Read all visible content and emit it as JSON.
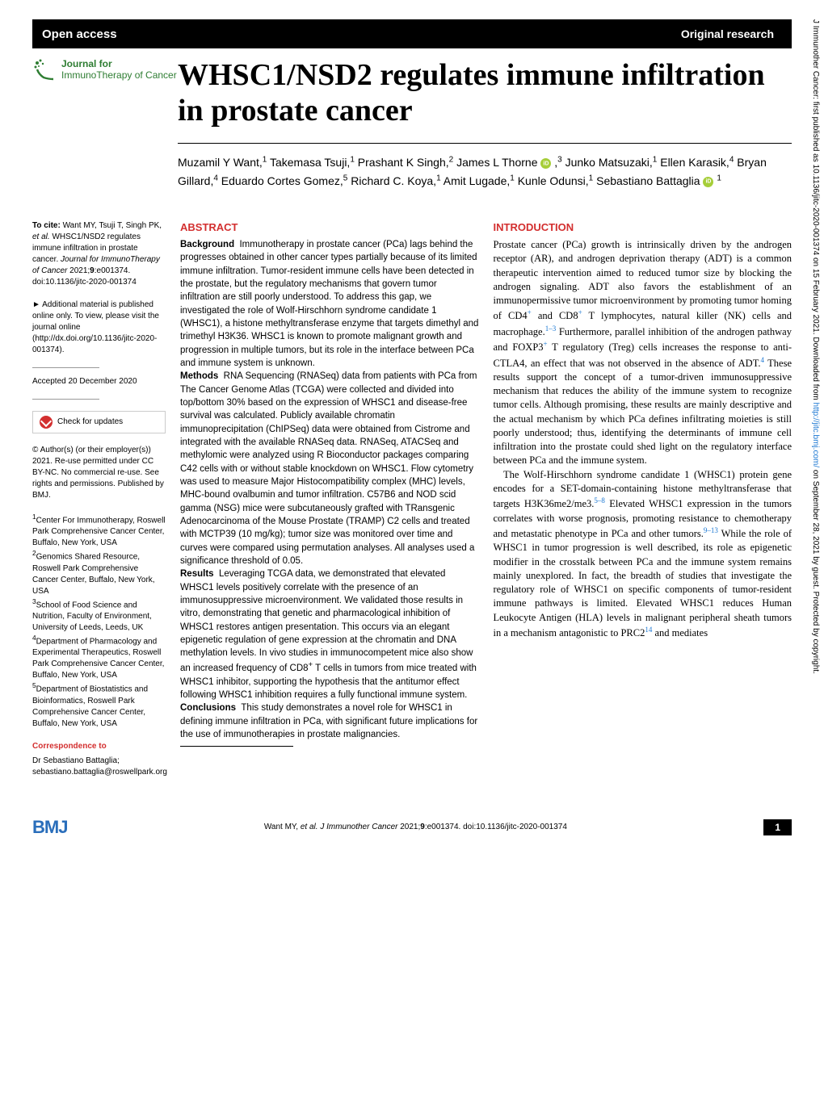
{
  "topbar": {
    "left": "Open access",
    "right": "Original research"
  },
  "journal": {
    "line1": "Journal for",
    "line2": "ImmunoTherapy of Cancer"
  },
  "title": "WHSC1/NSD2 regulates immune infiltration in prostate cancer",
  "authors_html": "Muzamil Y Want,<sup>1</sup> Takemasa Tsuji,<sup>1</sup> Prashant K Singh,<sup>2</sup> James L Thorne <span class='orcid-icon'></span> ,<sup>3</sup> Junko Matsuzaki,<sup>1</sup> Ellen Karasik,<sup>4</sup> Bryan Gillard,<sup>4</sup> Eduardo Cortes Gomez,<sup>5</sup> Richard C. Koya,<sup>1</sup> Amit Lugade,<sup>1</sup> Kunle Odunsi,<sup>1</sup> Sebastiano Battaglia <span class='orcid-icon'></span> <sup>1</sup>",
  "sidebar": {
    "citation": "<strong>To cite:</strong> Want MY, Tsuji T, Singh PK, <em>et al.</em> WHSC1/NSD2 regulates immune infiltration in prostate cancer. <em>Journal for ImmunoTherapy of Cancer</em> 2021;<strong>9</strong>:e001374. doi:10.1136/jitc-2020-001374",
    "supplementary": "► Additional material is published online only. To view, please visit the journal online (http://dx.doi.org/10.1136/jitc-2020-001374).",
    "accepted": "Accepted 20 December 2020",
    "check_updates": "Check for updates",
    "copyright": "© Author(s) (or their employer(s)) 2021. Re-use permitted under CC BY-NC. No commercial re-use. See rights and permissions. Published by BMJ.",
    "affiliations": "<sup>1</sup>Center For Immunotherapy, Roswell Park Comprehensive Cancer Center, Buffalo, New York, USA<br><sup>2</sup>Genomics Shared Resource, Roswell Park Comprehensive Cancer Center, Buffalo, New York, USA<br><sup>3</sup>School of Food Science and Nutrition, Faculty of Environment, University of Leeds, Leeds, UK<br><sup>4</sup>Department of Pharmacology and Experimental Therapeutics, Roswell Park Comprehensive Cancer Center, Buffalo, New York, USA<br><sup>5</sup>Department of Biostatistics and Bioinformatics, Roswell Park Comprehensive Cancer Center, Buffalo, New York, USA",
    "correspondence_heading": "Correspondence to",
    "correspondence": "Dr Sebastiano Battaglia;<br>sebastiano.battaglia@roswellpark.org"
  },
  "abstract": {
    "heading": "ABSTRACT",
    "background_label": "Background",
    "background": "Immunotherapy in prostate cancer (PCa) lags behind the progresses obtained in other cancer types partially because of its limited immune infiltration. Tumor-resident immune cells have been detected in the prostate, but the regulatory mechanisms that govern tumor infiltration are still poorly understood. To address this gap, we investigated the role of Wolf-Hirschhorn syndrome candidate 1 (WHSC1), a histone methyltransferase enzyme that targets dimethyl and trimethyl H3K36. WHSC1 is known to promote malignant growth and progression in multiple tumors, but its role in the interface between PCa and immune system is unknown.",
    "methods_label": "Methods",
    "methods": "RNA Sequencing (RNASeq) data from patients with PCa from The Cancer Genome Atlas (TCGA) were collected and divided into top/bottom 30% based on the expression of WHSC1 and disease-free survival was calculated. Publicly available chromatin immunoprecipitation (ChIPSeq) data were obtained from Cistrome and integrated with the available RNASeq data. RNASeq, ATACSeq and methylomic were analyzed using R Bioconductor packages comparing C42 cells with or without stable knockdown on WHSC1. Flow cytometry was used to measure Major Histocompatibility complex (MHC) levels, MHC-bound ovalbumin and tumor infiltration. C57B6 and NOD scid gamma (NSG) mice were subcutaneously grafted with TRansgenic Adenocarcinoma of the Mouse Prostate (TRAMP) C2 cells and treated with MCTP39 (10 mg/kg); tumor size was monitored over time and curves were compared using permutation analyses. All analyses used a significance threshold of 0.05.",
    "results_label": "Results",
    "results": "Leveraging TCGA data, we demonstrated that elevated WHSC1 levels positively correlate with the presence of an immunosuppressive microenvironment. We validated those results in vitro, demonstrating that genetic and pharmacological inhibition of WHSC1 restores antigen presentation. This occurs via an elegant epigenetic regulation of gene expression at the chromatin and DNA methylation levels. In vivo studies in immunocompetent mice also show an increased frequency of CD8<sup>+</sup> T cells in tumors from mice treated with WHSC1 inhibitor, supporting the hypothesis that the antitumor effect following WHSC1 inhibition requires a fully functional immune system.",
    "conclusions_label": "Conclusions",
    "conclusions": "This study demonstrates a novel role for WHSC1 in defining immune infiltration in PCa, with significant future implications for the use of immunotherapies in prostate malignancies."
  },
  "introduction": {
    "heading": "INTRODUCTION",
    "p1": "Prostate cancer (PCa) growth is intrinsically driven by the androgen receptor (AR), and androgen deprivation therapy (ADT) is a common therapeutic intervention aimed to reduced tumor size by blocking the androgen signaling. ADT also favors the establishment of an immunopermissive tumor microenvironment by promoting tumor homing of CD4<sup>+</sup> and CD8<sup>+</sup> T lymphocytes, natural killer (NK) cells and macrophage.<sup>1–3</sup> Furthermore, parallel inhibition of the androgen pathway and FOXP3<sup>+</sup> T regulatory (Treg) cells increases the response to anti-CTLA4, an effect that was not observed in the absence of ADT.<sup>4</sup> These results support the concept of a tumor-driven immunosuppressive mechanism that reduces the ability of the immune system to recognize tumor cells. Although promising, these results are mainly descriptive and the actual mechanism by which PCa defines infiltrating moieties is still poorly understood; thus, identifying the determinants of immune cell infiltration into the prostate could shed light on the regulatory interface between PCa and the immune system.",
    "p2": "The Wolf-Hirschhorn syndrome candidate 1 (WHSC1) protein gene encodes for a SET-domain-containing histone methyltransferase that targets H3K36me2/me3.<sup>5–8</sup> Elevated WHSC1 expression in the tumors correlates with worse prognosis, promoting resistance to chemotherapy and metastatic phenotype in PCa and other tumors.<sup>9–13</sup> While the role of WHSC1 in tumor progression is well described, its role as epigenetic modifier in the crosstalk between PCa and the immune system remains mainly unexplored. In fact, the breadth of studies that investigate the regulatory role of WHSC1 on specific components of tumor-resident immune pathways is limited. Elevated WHSC1 reduces Human Leukocyte Antigen (HLA) levels in malignant peripheral sheath tumors in a mechanism antagonistic to PRC2<sup>14</sup> and mediates"
  },
  "footer": {
    "logo": "BMJ",
    "citation": "Want MY, <em>et al. J Immunother Cancer</em> 2021;<strong>9</strong>:e001374. doi:10.1136/jitc-2020-001374",
    "page": "1"
  },
  "sidetext": "J Immunother Cancer: first published as 10.1136/jitc-2020-001374 on 15 February 2021. Downloaded from <a href='#'>http://jitc.bmj.com/</a> on September 28, 2021 by guest. Protected by copyright.",
  "colors": {
    "accent_red": "#d32f2f",
    "accent_green": "#2e7d32",
    "link_blue": "#1976d2",
    "bmj_blue": "#2a6ebb",
    "black": "#000000"
  }
}
